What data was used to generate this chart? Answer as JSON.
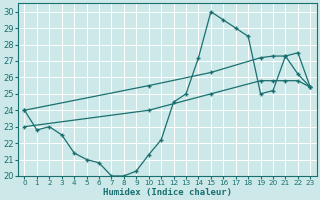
{
  "xlabel": "Humidex (Indice chaleur)",
  "xlim": [
    -0.5,
    23.5
  ],
  "ylim": [
    20,
    30.5
  ],
  "xticks": [
    0,
    1,
    2,
    3,
    4,
    5,
    6,
    7,
    8,
    9,
    10,
    11,
    12,
    13,
    14,
    15,
    16,
    17,
    18,
    19,
    20,
    21,
    22,
    23
  ],
  "yticks": [
    20,
    21,
    22,
    23,
    24,
    25,
    26,
    27,
    28,
    29,
    30
  ],
  "bg_color": "#cce8e8",
  "line_color": "#1a7070",
  "grid_color": "#ffffff",
  "line_zigzag_x": [
    0,
    1,
    2,
    3,
    4,
    5,
    6,
    7,
    8,
    9,
    10,
    11,
    12,
    13,
    14,
    15,
    16,
    17,
    18,
    19,
    20,
    21,
    22,
    23
  ],
  "line_zigzag_y": [
    24.0,
    22.8,
    23.0,
    22.5,
    21.4,
    21.0,
    20.8,
    20.0,
    20.0,
    20.3,
    21.3,
    22.2,
    24.5,
    25.0,
    27.2,
    30.0,
    29.5,
    29.0,
    28.5,
    25.0,
    25.2,
    27.3,
    26.2,
    25.4
  ],
  "line_upper_x": [
    0,
    10,
    15,
    19,
    20,
    21,
    22,
    23
  ],
  "line_upper_y": [
    24.0,
    25.5,
    26.3,
    27.2,
    27.3,
    27.3,
    27.5,
    25.4
  ],
  "line_lower_x": [
    0,
    10,
    15,
    19,
    20,
    21,
    22,
    23
  ],
  "line_lower_y": [
    23.0,
    24.0,
    25.0,
    25.8,
    25.8,
    25.8,
    25.8,
    25.4
  ]
}
